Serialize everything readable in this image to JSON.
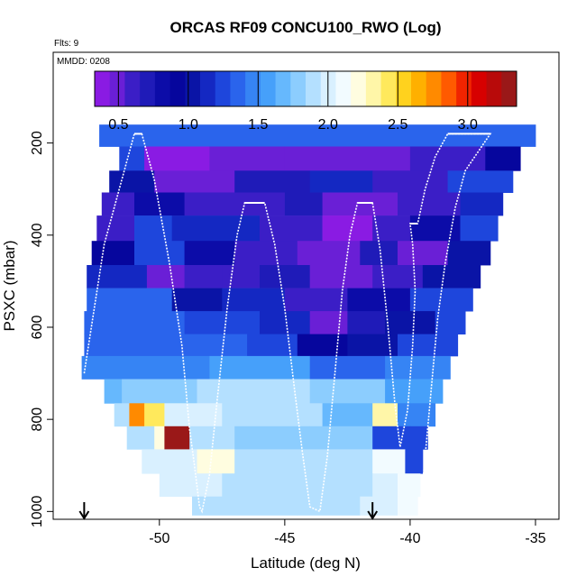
{
  "chart_data": {
    "type": "heatmap",
    "title": "ORCAS RF09 CONCU100_RWO (Log)",
    "flights_label": "Flts: 9",
    "date_label": "MMDD: 0208",
    "xlabel": "Latitude (deg N)",
    "ylabel": "PSXC (mbar)",
    "xlim": [
      -54.2,
      -34.1
    ],
    "ylim": [
      1015,
      5
    ],
    "x_ticks": [
      -50,
      -45,
      -40,
      -35
    ],
    "x_tick_labels": [
      "-50",
      "-45",
      "-40",
      "-35"
    ],
    "y_ticks": [
      200,
      400,
      600,
      800,
      1000
    ],
    "y_tick_labels": [
      "200",
      "400",
      "600",
      "800",
      "1000"
    ],
    "colorbar": {
      "range": [
        0.33,
        3.35
      ],
      "ticks": [
        0.5,
        1.0,
        1.5,
        2.0,
        2.5,
        3.0
      ],
      "tick_labels": [
        "0.5",
        "1.0",
        "1.5",
        "2.0",
        "2.5",
        "3.0"
      ],
      "colors": [
        "#8a1be3",
        "#6a1fd6",
        "#3b1ec6",
        "#1f1bb8",
        "#0c0ca8",
        "#06069d",
        "#0a14a6",
        "#1428c2",
        "#1e46dc",
        "#2a64ec",
        "#3684f4",
        "#46a0fa",
        "#66b8fd",
        "#8ccdfe",
        "#b4e0ff",
        "#d9f0ff",
        "#f2fbff",
        "#fffde0",
        "#fff6a8",
        "#ffe95c",
        "#ffd21e",
        "#ffb000",
        "#ff8a00",
        "#ff5a00",
        "#f02400",
        "#d70000",
        "#b80a0a",
        "#9a1818"
      ]
    },
    "row_pressures": [
      180,
      235,
      285,
      330,
      385,
      440,
      490,
      540,
      590,
      640,
      685,
      740,
      790,
      840,
      890,
      945,
      990
    ],
    "row_bounds": [
      [
        -52.4,
        -35.0
      ],
      [
        -51.6,
        -35.6
      ],
      [
        -52.0,
        -35.9
      ],
      [
        -52.3,
        -36.3
      ],
      [
        -52.5,
        -36.5
      ],
      [
        -52.7,
        -36.8
      ],
      [
        -52.9,
        -37.2
      ],
      [
        -52.9,
        -37.5
      ],
      [
        -53.0,
        -37.8
      ],
      [
        -53.0,
        -38.1
      ],
      [
        -53.1,
        -38.4
      ],
      [
        -52.2,
        -38.7
      ],
      [
        -51.8,
        -39.0
      ],
      [
        -51.3,
        -39.3
      ],
      [
        -50.7,
        -39.5
      ],
      [
        -50.0,
        -39.6
      ],
      [
        -48.7,
        -39.7
      ]
    ],
    "cells": [
      [
        [
          -52.4,
          -35.0,
          1.35
        ]
      ],
      [
        [
          -51.6,
          -50.6,
          1.3
        ],
        [
          -50.6,
          -48.0,
          0.35
        ],
        [
          -48.0,
          -45.0,
          0.5
        ],
        [
          -45.0,
          -40.0,
          0.5
        ],
        [
          -40.0,
          -37.0,
          0.55
        ],
        [
          -37.0,
          -35.6,
          0.9
        ]
      ],
      [
        [
          -52.0,
          -50.2,
          1.0
        ],
        [
          -50.2,
          -47.0,
          0.5
        ],
        [
          -47.0,
          -44.0,
          0.7
        ],
        [
          -44.0,
          -41.5,
          1.1
        ],
        [
          -41.5,
          -38.5,
          0.6
        ],
        [
          -38.5,
          -35.9,
          1.2
        ]
      ],
      [
        [
          -52.3,
          -51.0,
          0.55
        ],
        [
          -51.0,
          -49.0,
          0.8
        ],
        [
          -49.0,
          -45.0,
          0.55
        ],
        [
          -45.0,
          -43.5,
          0.7
        ],
        [
          -43.5,
          -40.5,
          0.5
        ],
        [
          -40.5,
          -38.0,
          0.65
        ],
        [
          -38.0,
          -36.3,
          1.1
        ]
      ],
      [
        [
          -52.5,
          -51.0,
          0.6
        ],
        [
          -51.0,
          -49.5,
          1.3
        ],
        [
          -49.5,
          -46.0,
          1.1
        ],
        [
          -46.0,
          -43.5,
          0.6
        ],
        [
          -43.5,
          -41.5,
          0.4
        ],
        [
          -41.5,
          -40.0,
          0.55
        ],
        [
          -40.0,
          -38.0,
          0.8
        ],
        [
          -38.0,
          -36.5,
          1.2
        ]
      ],
      [
        [
          -52.7,
          -51.0,
          0.9
        ],
        [
          -51.0,
          -49.0,
          1.3
        ],
        [
          -49.0,
          -47.0,
          0.8
        ],
        [
          -47.0,
          -44.5,
          0.6
        ],
        [
          -44.5,
          -42.0,
          0.5
        ],
        [
          -42.0,
          -40.5,
          0.7
        ],
        [
          -40.5,
          -38.5,
          0.45
        ],
        [
          -38.5,
          -36.8,
          1.0
        ]
      ],
      [
        [
          -52.9,
          -50.5,
          1.1
        ],
        [
          -50.5,
          -49.0,
          0.45
        ],
        [
          -49.0,
          -47.5,
          0.6
        ],
        [
          -47.5,
          -46.0,
          0.55
        ],
        [
          -46.0,
          -44.0,
          0.7
        ],
        [
          -44.0,
          -41.5,
          0.5
        ],
        [
          -41.5,
          -39.5,
          0.65
        ],
        [
          -39.5,
          -37.2,
          1.0
        ]
      ],
      [
        [
          -52.9,
          -49.5,
          1.35
        ],
        [
          -49.5,
          -47.5,
          1.0
        ],
        [
          -47.5,
          -45.0,
          1.1
        ],
        [
          -45.0,
          -42.5,
          0.6
        ],
        [
          -42.5,
          -40.0,
          0.8
        ],
        [
          -40.0,
          -37.5,
          1.25
        ]
      ],
      [
        [
          -53.0,
          -49.0,
          1.35
        ],
        [
          -49.0,
          -46.0,
          1.2
        ],
        [
          -46.0,
          -44.0,
          1.1
        ],
        [
          -44.0,
          -42.5,
          0.45
        ],
        [
          -42.5,
          -41.0,
          0.7
        ],
        [
          -41.0,
          -39.0,
          1.0
        ],
        [
          -39.0,
          -37.8,
          1.3
        ]
      ],
      [
        [
          -53.0,
          -50.0,
          1.35
        ],
        [
          -50.0,
          -46.5,
          1.4
        ],
        [
          -46.5,
          -44.5,
          1.2
        ],
        [
          -44.5,
          -42.5,
          0.9
        ],
        [
          -42.5,
          -40.5,
          1.0
        ],
        [
          -40.5,
          -38.1,
          1.3
        ]
      ],
      [
        [
          -53.1,
          -52.0,
          1.5
        ],
        [
          -52.0,
          -48.0,
          1.45
        ],
        [
          -48.0,
          -44.0,
          1.55
        ],
        [
          -44.0,
          -41.0,
          1.4
        ],
        [
          -41.0,
          -38.4,
          1.45
        ]
      ],
      [
        [
          -52.2,
          -51.5,
          1.7
        ],
        [
          -51.5,
          -48.5,
          1.8
        ],
        [
          -48.5,
          -44.0,
          1.85
        ],
        [
          -44.0,
          -41.0,
          1.8
        ],
        [
          -41.0,
          -39.5,
          1.6
        ],
        [
          -39.5,
          -38.7,
          1.55
        ]
      ],
      [
        [
          -51.8,
          -51.2,
          1.9
        ],
        [
          -51.2,
          -50.6,
          2.8
        ],
        [
          -50.6,
          -49.8,
          2.45
        ],
        [
          -49.8,
          -47.5,
          1.95
        ],
        [
          -47.5,
          -43.5,
          1.85
        ],
        [
          -43.5,
          -41.5,
          1.7
        ],
        [
          -41.5,
          -40.5,
          2.3
        ],
        [
          -40.5,
          -39.0,
          1.45
        ]
      ],
      [
        [
          -51.3,
          -50.2,
          1.85
        ],
        [
          -50.2,
          -49.8,
          2.2
        ],
        [
          -49.8,
          -48.8,
          3.3
        ],
        [
          -48.8,
          -47.0,
          1.9
        ],
        [
          -47.0,
          -44.0,
          1.8
        ],
        [
          -44.0,
          -41.5,
          1.75
        ],
        [
          -41.5,
          -40.0,
          1.2
        ],
        [
          -40.0,
          -39.3,
          1.3
        ]
      ],
      [
        [
          -50.7,
          -48.5,
          1.95
        ],
        [
          -48.5,
          -47.0,
          2.2
        ],
        [
          -47.0,
          -44.0,
          1.85
        ],
        [
          -44.0,
          -41.5,
          1.9
        ],
        [
          -41.5,
          -40.2,
          2.15
        ],
        [
          -40.2,
          -39.5,
          1.3
        ]
      ],
      [
        [
          -50.0,
          -47.5,
          1.95
        ],
        [
          -47.5,
          -44.0,
          1.85
        ],
        [
          -44.0,
          -41.5,
          1.9
        ],
        [
          -41.5,
          -40.5,
          2.05
        ],
        [
          -40.5,
          -39.6,
          2.15
        ]
      ],
      [
        [
          -48.7,
          -44.5,
          1.85
        ],
        [
          -44.5,
          -42.0,
          1.9
        ],
        [
          -42.0,
          -40.5,
          2.0
        ],
        [
          -40.5,
          -39.7,
          2.15
        ]
      ]
    ],
    "flight_track": [
      [
        -53.0,
        700
      ],
      [
        -52.6,
        560
      ],
      [
        -52.2,
        420
      ],
      [
        -51.6,
        300
      ],
      [
        -51.0,
        180
      ],
      [
        -50.7,
        180
      ],
      [
        -50.2,
        280
      ],
      [
        -49.6,
        460
      ],
      [
        -49.1,
        640
      ],
      [
        -48.8,
        820
      ],
      [
        -48.6,
        900
      ],
      [
        -48.4,
        990
      ],
      [
        -48.3,
        1000
      ],
      [
        -48.0,
        920
      ],
      [
        -47.7,
        760
      ],
      [
        -47.3,
        560
      ],
      [
        -46.9,
        400
      ],
      [
        -46.6,
        330
      ],
      [
        -45.8,
        330
      ],
      [
        -45.4,
        420
      ],
      [
        -45.0,
        560
      ],
      [
        -44.6,
        740
      ],
      [
        -44.3,
        870
      ],
      [
        -44.0,
        990
      ],
      [
        -43.6,
        1000
      ],
      [
        -43.3,
        880
      ],
      [
        -43.0,
        700
      ],
      [
        -42.7,
        520
      ],
      [
        -42.4,
        400
      ],
      [
        -42.1,
        330
      ],
      [
        -41.5,
        330
      ],
      [
        -41.2,
        430
      ],
      [
        -40.9,
        590
      ],
      [
        -40.6,
        770
      ],
      [
        -40.4,
        860
      ],
      [
        -40.1,
        780
      ],
      [
        -39.9,
        640
      ],
      [
        -39.8,
        520
      ],
      [
        -39.9,
        420
      ],
      [
        -40.0,
        375
      ],
      [
        -39.7,
        375
      ],
      [
        -39.4,
        300
      ],
      [
        -39.0,
        230
      ],
      [
        -38.5,
        180
      ],
      [
        -37.5,
        180
      ],
      [
        -36.8,
        180
      ],
      [
        -36.8,
        180
      ],
      [
        -37.8,
        260
      ],
      [
        -38.2,
        340
      ],
      [
        -38.6,
        460
      ],
      [
        -38.9,
        580
      ],
      [
        -39.1,
        700
      ],
      [
        -39.3,
        820
      ],
      [
        -39.5,
        940
      ],
      [
        -39.6,
        1000
      ]
    ],
    "markers": [
      -53.0,
      -41.5
    ]
  }
}
